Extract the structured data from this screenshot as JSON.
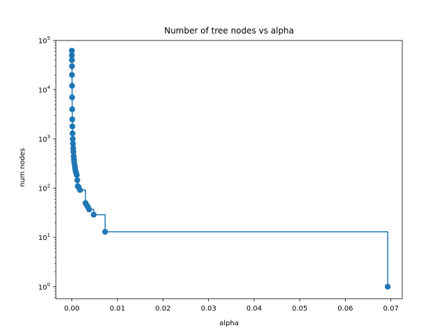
{
  "chart_data": {
    "type": "scatter",
    "title": "Number of tree nodes vs alpha",
    "xlabel": "alpha",
    "ylabel": "num nodes",
    "xlim": [
      -0.0035,
      0.0725
    ],
    "ylim": [
      0.57,
      100000
    ],
    "yscale": "log",
    "grid": false,
    "drawstyle": "steps-post",
    "color": "#1f77b4",
    "x_ticks": [
      0.0,
      0.01,
      0.02,
      0.03,
      0.04,
      0.05,
      0.06,
      0.07
    ],
    "x_tick_labels": [
      "0.00",
      "0.01",
      "0.02",
      "0.03",
      "0.04",
      "0.05",
      "0.06",
      "0.07"
    ],
    "y_ticks": [
      1,
      10,
      100,
      1000,
      10000,
      100000
    ],
    "y_tick_labels": [
      "10",
      "10",
      "10",
      "10",
      "10",
      "10"
    ],
    "y_tick_exponents": [
      "0",
      "1",
      "2",
      "3",
      "4",
      "5"
    ],
    "series": [
      {
        "x": [
          0.0,
          1e-05,
          2e-05,
          3e-05,
          4e-05,
          5e-05,
          6e-05,
          8e-05,
          0.0001,
          0.00012,
          0.00015,
          0.0002,
          0.00025,
          0.0003,
          0.00035,
          0.0004,
          0.00045,
          0.0005,
          0.0006,
          0.0007,
          0.0008,
          0.0009,
          0.001,
          0.0011,
          0.0012,
          0.0013,
          0.0015,
          0.0018,
          0.003,
          0.0032,
          0.0035,
          0.0038,
          0.0048,
          0.0073,
          0.0693
        ],
        "y": [
          62000,
          50000,
          40000,
          30000,
          20000,
          12000,
          7000,
          4000,
          2500,
          1800,
          1300,
          1000,
          800,
          650,
          550,
          450,
          400,
          350,
          300,
          260,
          230,
          210,
          195,
          185,
          145,
          110,
          105,
          92,
          50,
          46,
          42,
          37,
          29,
          13,
          1
        ]
      }
    ]
  }
}
